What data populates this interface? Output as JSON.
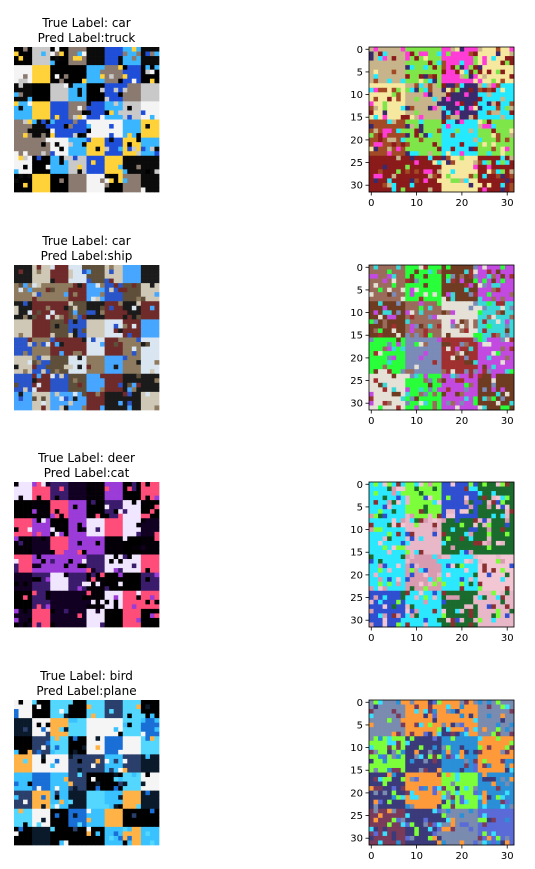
{
  "figure": {
    "rows": [
      {
        "true_label_text": "True Label: car",
        "pred_label_text": "Pred Label:truck",
        "left_palette": [
          "#ffd23a",
          "#f4f4f4",
          "#1f4fd8",
          "#39b6ff",
          "#000000",
          "#8a7a70",
          "#0b0b0b",
          "#c9c9c9"
        ],
        "right_palette": [
          "#a14a25",
          "#c8b48a",
          "#ff3dd6",
          "#25e9ff",
          "#3b2a6b",
          "#f7e8a0",
          "#7fe64a",
          "#8b1a1a"
        ]
      },
      {
        "true_label_text": "True Label: car",
        "pred_label_text": "Pred Label:ship",
        "left_palette": [
          "#2a55c9",
          "#47a6ff",
          "#d9e6f2",
          "#5e4f3a",
          "#8e7b5f",
          "#1b1b1b",
          "#cfc8b6",
          "#6f2a2a"
        ],
        "right_palette": [
          "#6f3c22",
          "#9a6b5a",
          "#7b8bb8",
          "#3ad8d8",
          "#c24ae0",
          "#28ff3a",
          "#a03030",
          "#e6e1d7"
        ]
      },
      {
        "true_label_text": "True Label: deer",
        "pred_label_text": "Pred Label:cat",
        "left_palette": [
          "#000000",
          "#050008",
          "#3b1b6b",
          "#9b3bd8",
          "#ff4d7a",
          "#f0e6ff",
          "#120022",
          "#000000"
        ],
        "right_palette": [
          "#e8b7c8",
          "#f2c6d2",
          "#2be8ff",
          "#1b6b2f",
          "#7cff3a",
          "#8b3030",
          "#2f4fd0",
          "#d89bb0"
        ]
      },
      {
        "true_label_text": "True Label: bird",
        "pred_label_text": "Pred Label:plane",
        "left_palette": [
          "#39c2ff",
          "#1a6fd6",
          "#0b1a2b",
          "#000000",
          "#ffb347",
          "#f5f5f5",
          "#53d7ff",
          "#2a3f6b"
        ],
        "right_palette": [
          "#3b3a7a",
          "#5a6bd8",
          "#7a8bb0",
          "#ff9a3a",
          "#39e0ff",
          "#7cff3a",
          "#7a3b5a",
          "#2a8fd6"
        ]
      }
    ],
    "axis": {
      "y_ticks": [
        0,
        5,
        10,
        15,
        20,
        25,
        30
      ],
      "x_ticks": [
        0,
        10,
        20,
        30
      ],
      "range": [
        -0.5,
        31.5
      ]
    }
  }
}
